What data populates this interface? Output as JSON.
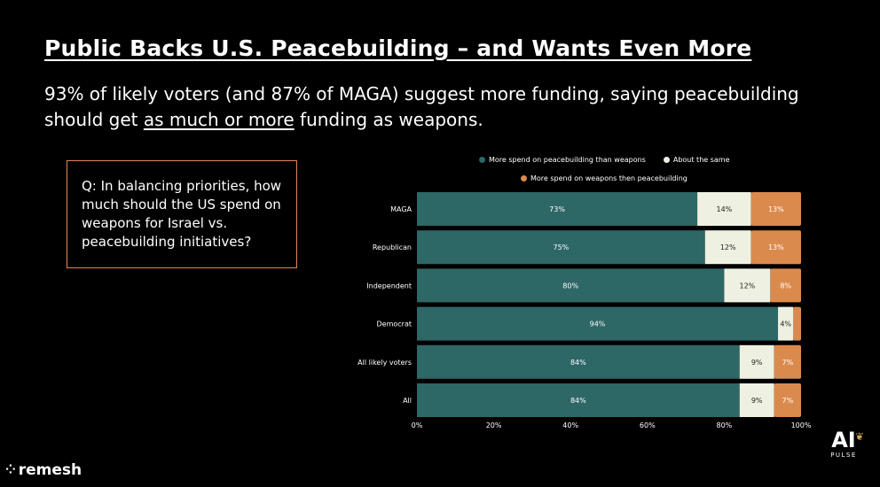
{
  "title": "Public Backs U.S. Peacebuilding – and Wants Even More",
  "subtitle": {
    "pre": "93% of likely voters (and 87% of MAGA) suggest more funding, saying peacebuilding should get ",
    "underlined": "as much or more",
    "post": " funding as weapons."
  },
  "question": "Q: In balancing priorities, how much should the US spend on weapons for Israel vs. peacebuilding initiatives?",
  "brand": {
    "logo_text": "remesh",
    "badge_main": "AI",
    "badge_sub": "PULSE"
  },
  "colors": {
    "peace": "#2d6766",
    "same": "#eef0e1",
    "weapons": "#db8a4e"
  },
  "chart_data": {
    "type": "bar",
    "orientation": "horizontal",
    "stacked": true,
    "categories": [
      "MAGA",
      "Republican",
      "Independent",
      "Democrat",
      "All likely voters",
      "All"
    ],
    "series": [
      {
        "name": "More spend on peacebuilding than weapons",
        "values": [
          73,
          75,
          80,
          94,
          84,
          84
        ],
        "labels": [
          "73%",
          "75%",
          "80%",
          "94%",
          "84%",
          "84%"
        ],
        "color": "#2d6766"
      },
      {
        "name": "About the same",
        "values": [
          14,
          12,
          12,
          4,
          9,
          9
        ],
        "labels": [
          "14%",
          "12%",
          "12%",
          "4%",
          "9%",
          "9%"
        ],
        "color": "#eef0e1"
      },
      {
        "name": "More spend on weapons then peacebuilding",
        "values": [
          13,
          13,
          8,
          2,
          7,
          7
        ],
        "labels": [
          "13%",
          "13%",
          "8%",
          "",
          "7%",
          "7%"
        ],
        "color": "#db8a4e"
      }
    ],
    "xlim": [
      0,
      100
    ],
    "xticks": [
      "0%",
      "20%",
      "40%",
      "60%",
      "80%",
      "100%"
    ],
    "legend_position": "top"
  }
}
